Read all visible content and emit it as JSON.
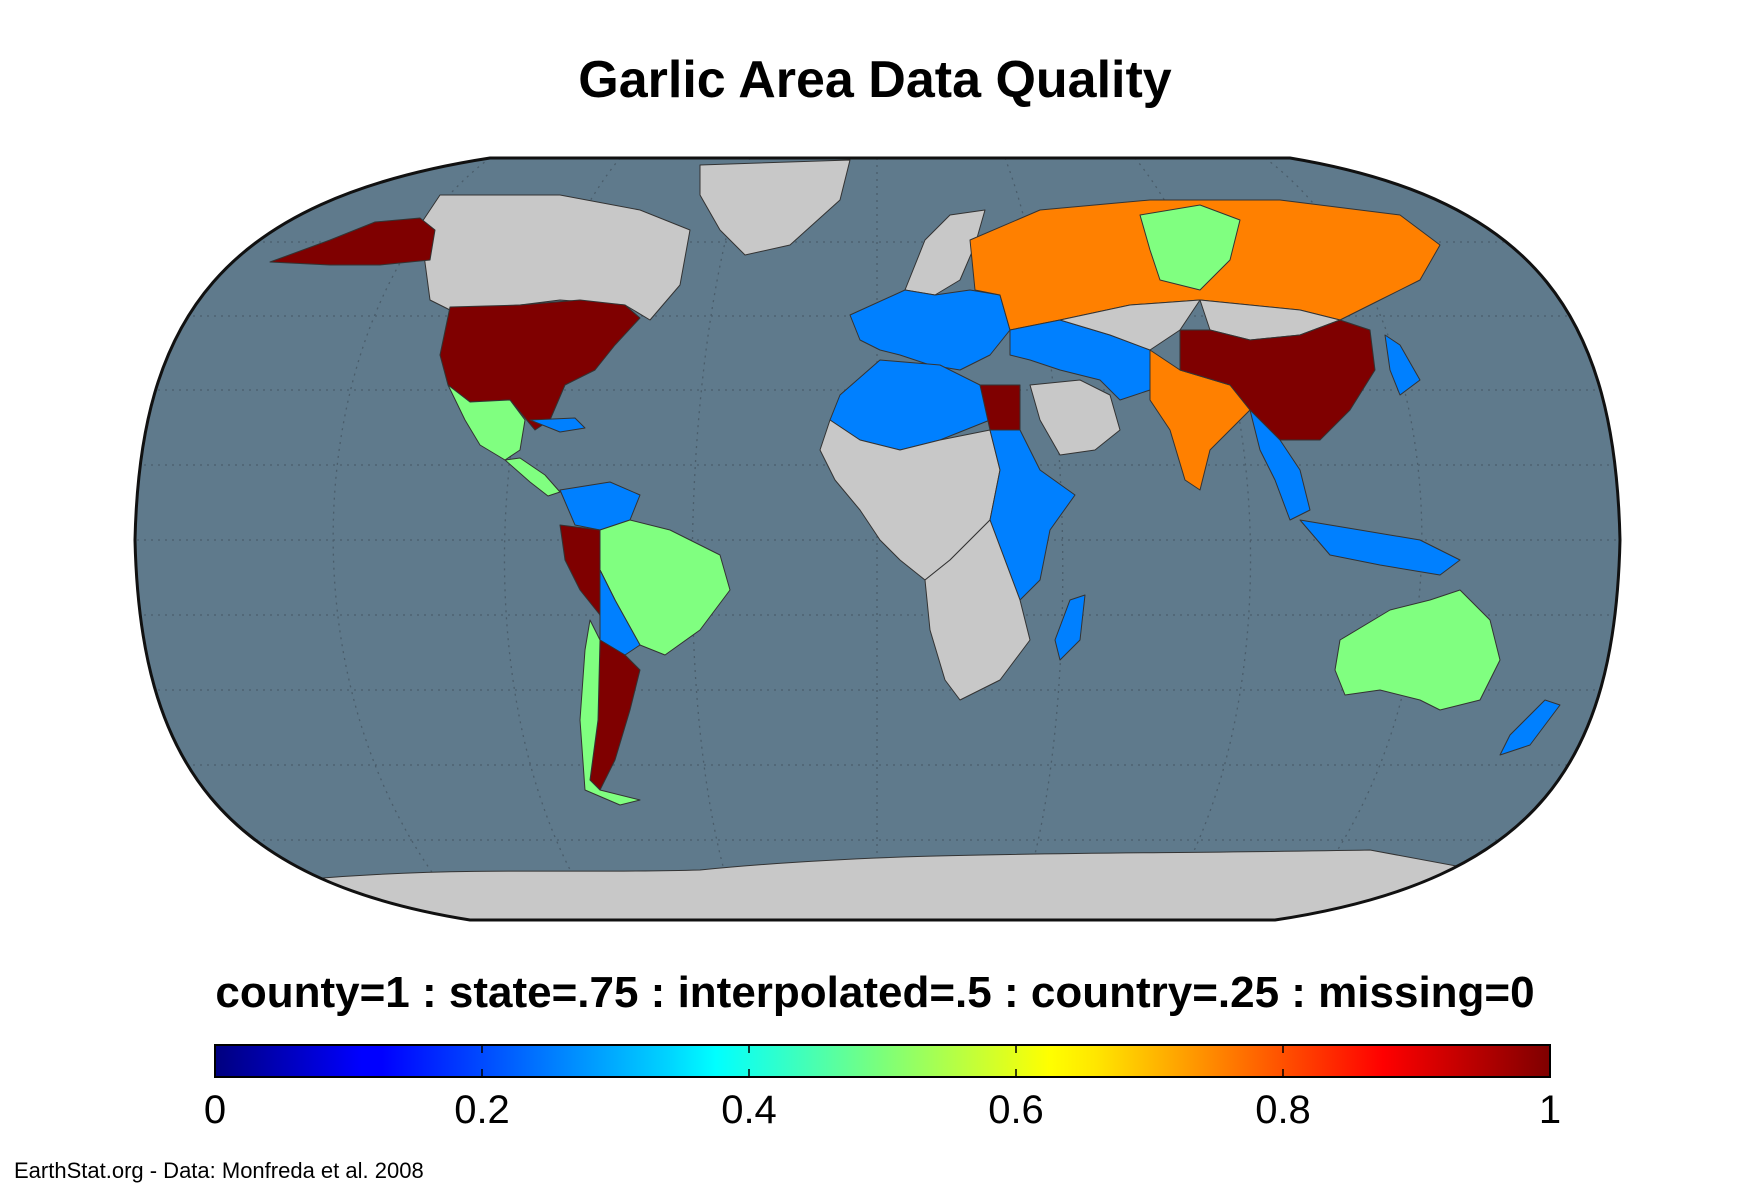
{
  "title": "Garlic Area Data Quality",
  "legend_text": "county=1 : state=.75 : interpolated=.5 : country=.25 : missing=0",
  "credit": "EarthStat.org - Data: Monfreda et al. 2008",
  "colorbar": {
    "min": 0,
    "max": 1,
    "colormap": "jet",
    "ticks": [
      {
        "value": 0,
        "label": "0"
      },
      {
        "value": 0.2,
        "label": "0.2"
      },
      {
        "value": 0.4,
        "label": "0.4"
      },
      {
        "value": 0.6,
        "label": "0.6"
      },
      {
        "value": 0.8,
        "label": "0.8"
      },
      {
        "value": 1,
        "label": "1"
      }
    ]
  },
  "colors": {
    "ocean": "#5f7a8c",
    "no_data_land": "#c8c8c8",
    "county": "#7f0000",
    "state": "#ff8000",
    "interpolated": "#80ff80",
    "country": "#0080ff"
  },
  "regions": [
    {
      "name": "alaska",
      "value": 1
    },
    {
      "name": "canada",
      "value": null
    },
    {
      "name": "greenland",
      "value": null
    },
    {
      "name": "usa",
      "value": 1
    },
    {
      "name": "mexico",
      "value": 0.5
    },
    {
      "name": "central-america",
      "value": 0.5
    },
    {
      "name": "caribbean",
      "value": 0.25
    },
    {
      "name": "colombia-venezuela",
      "value": 0.25
    },
    {
      "name": "brazil",
      "value": 0.5
    },
    {
      "name": "peru",
      "value": 1
    },
    {
      "name": "bolivia-paraguay",
      "value": 0.25
    },
    {
      "name": "argentina",
      "value": 1
    },
    {
      "name": "chile",
      "value": 0.5
    },
    {
      "name": "europe",
      "value": 0.25
    },
    {
      "name": "scandinavia",
      "value": null
    },
    {
      "name": "russia",
      "value": 0.75
    },
    {
      "name": "west-siberia",
      "value": 0.5
    },
    {
      "name": "north-africa",
      "value": 0.25
    },
    {
      "name": "egypt",
      "value": 1
    },
    {
      "name": "sahel-africa",
      "value": null
    },
    {
      "name": "east-africa",
      "value": 0.25
    },
    {
      "name": "southern-africa",
      "value": null
    },
    {
      "name": "madagascar",
      "value": 0.25
    },
    {
      "name": "middle-east",
      "value": 0.25
    },
    {
      "name": "arabia",
      "value": null
    },
    {
      "name": "central-asia",
      "value": null
    },
    {
      "name": "india",
      "value": 0.75
    },
    {
      "name": "china",
      "value": 1
    },
    {
      "name": "mongolia",
      "value": null
    },
    {
      "name": "southeast-asia",
      "value": 0.25
    },
    {
      "name": "japan-korea",
      "value": 0.25
    },
    {
      "name": "indonesia",
      "value": 0.25
    },
    {
      "name": "australia",
      "value": 0.5
    },
    {
      "name": "new-zealand",
      "value": 0.25
    },
    {
      "name": "antarctica",
      "value": null
    }
  ]
}
